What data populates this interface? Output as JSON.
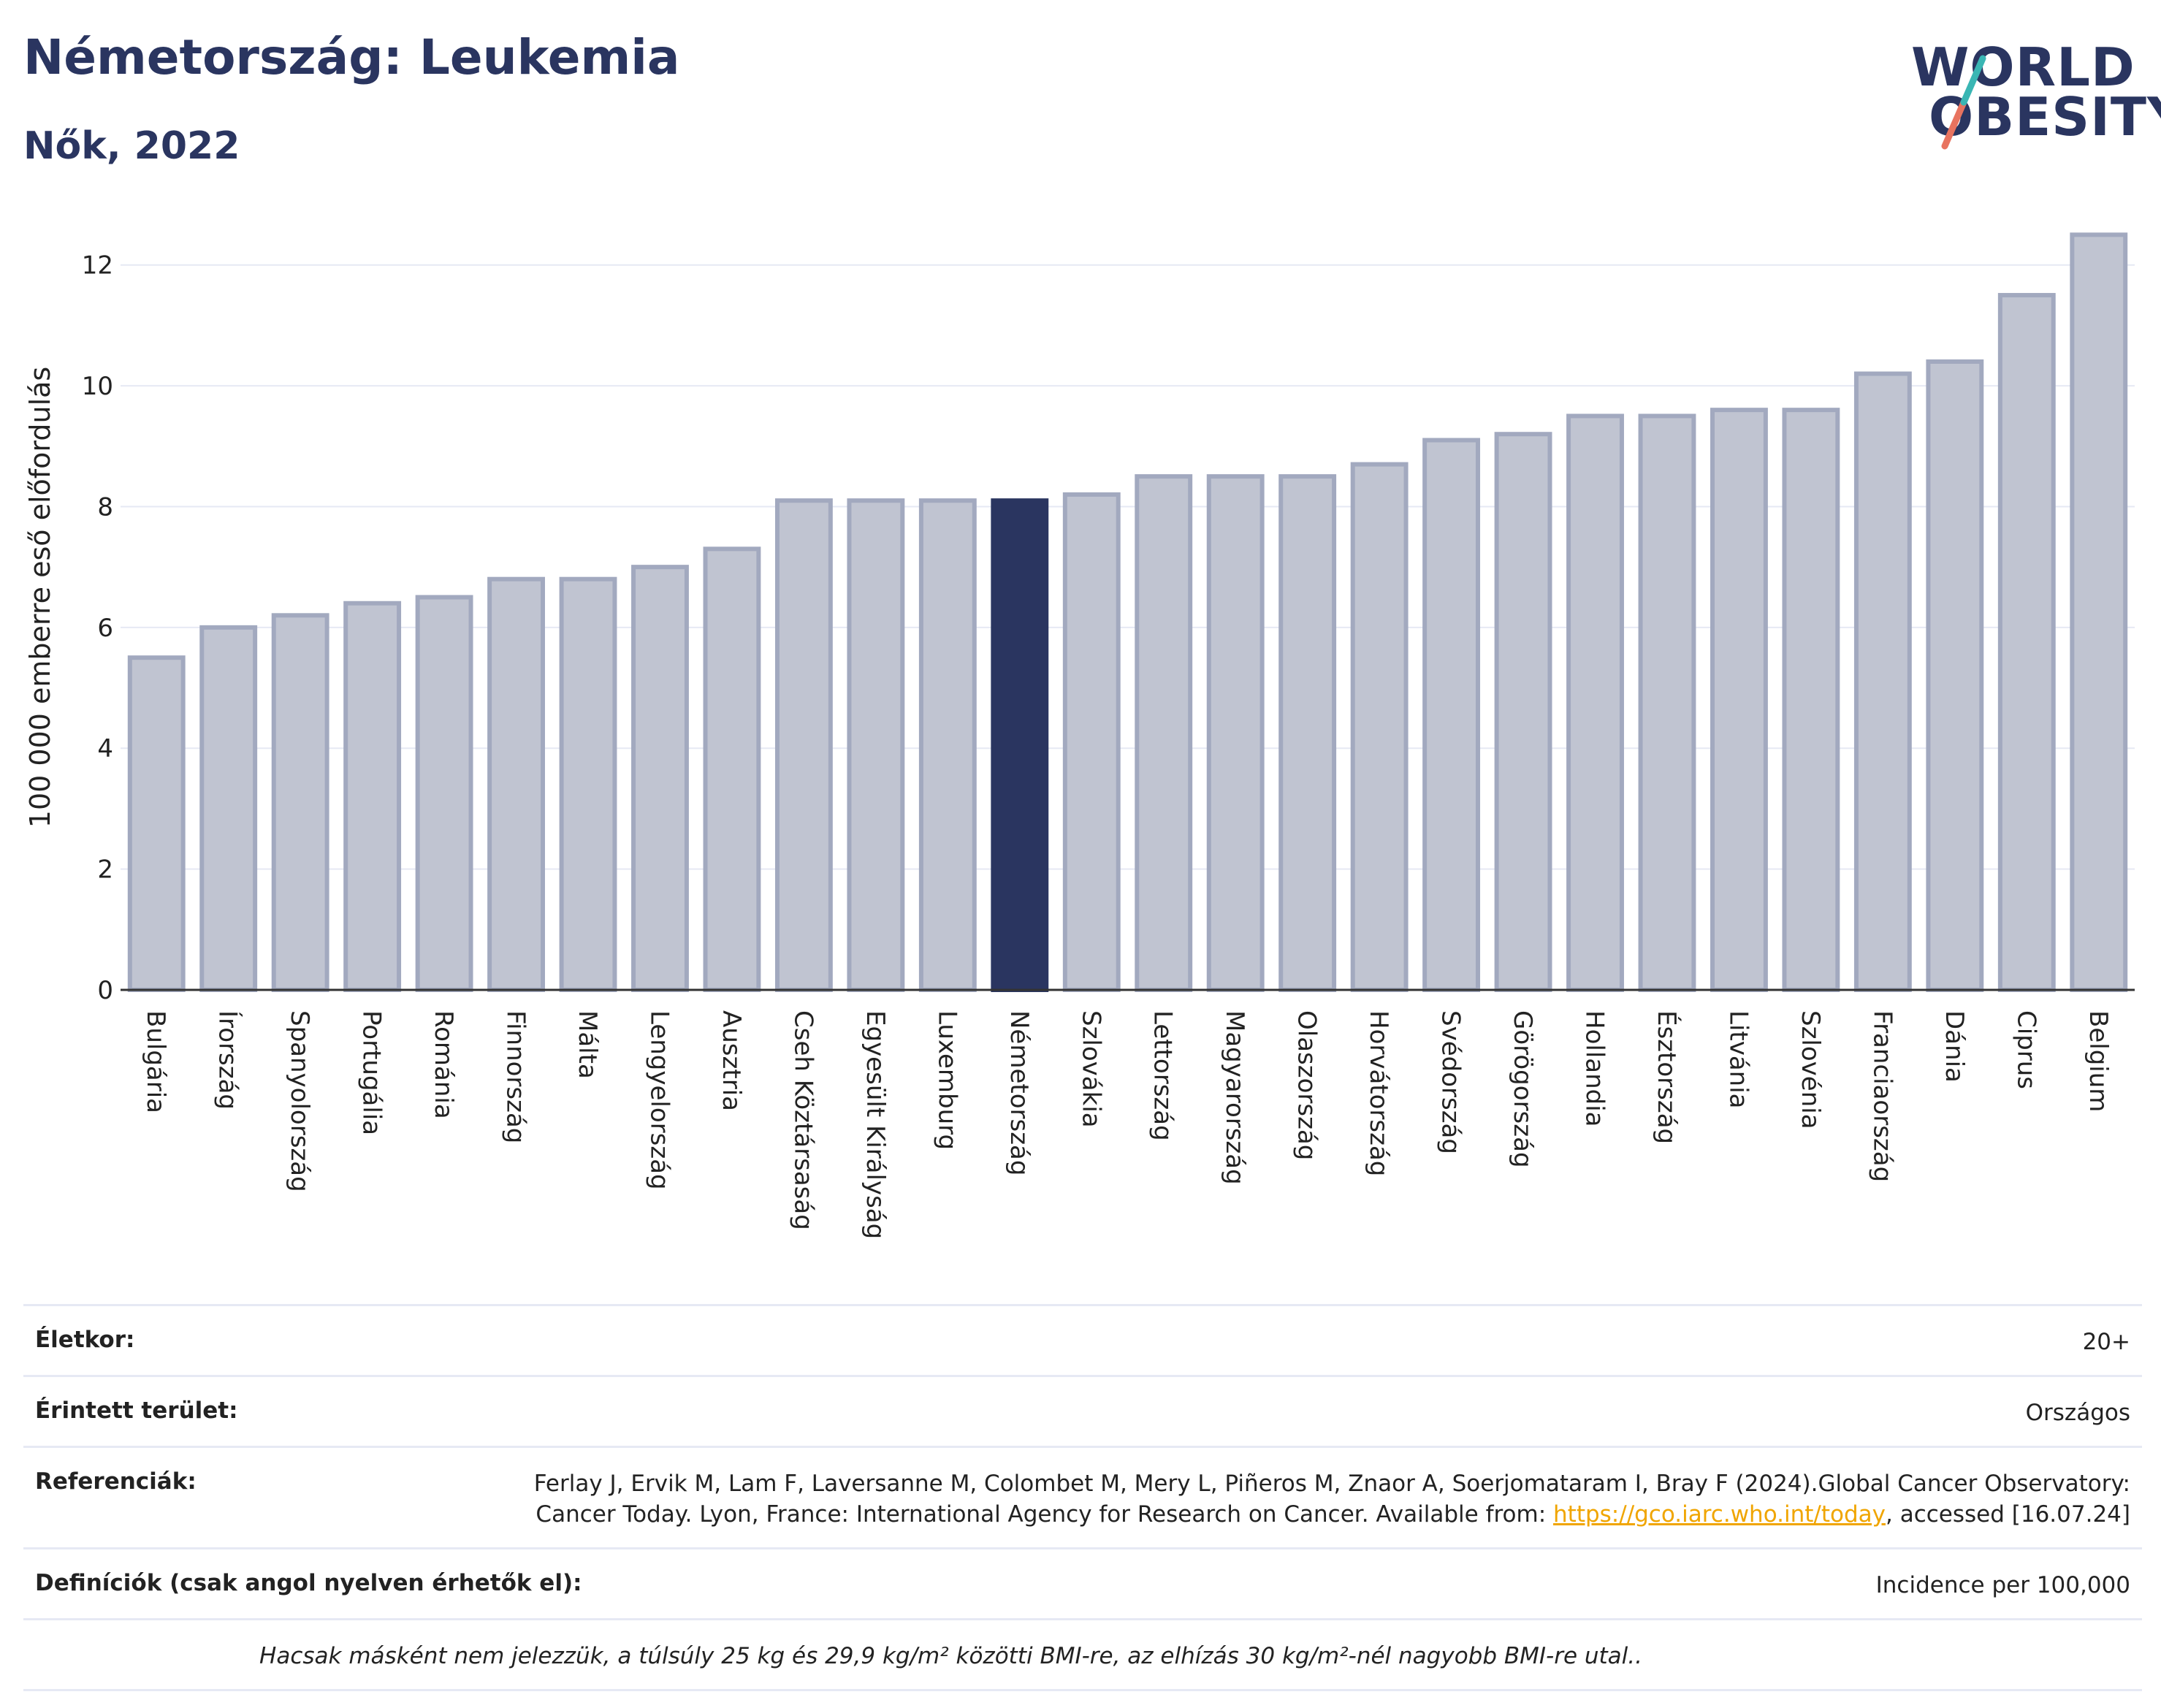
{
  "header": {
    "title": "Németország: Leukemia",
    "subtitle": "Nők, 2022"
  },
  "logo": {
    "line1": "WORLD",
    "line2": "OBESITY"
  },
  "colors": {
    "highlight": "#2a3560",
    "bar_fill": "#c0c4d1",
    "bar_stroke": "#a2a9bf",
    "grid": "#e6e9f4",
    "accent_teal": "#3ab6b4",
    "accent_coral": "#e8735f"
  },
  "chart_data": {
    "type": "bar",
    "ylabel": "100 000 emberre eső előfordulás",
    "ylim": [
      0,
      13
    ],
    "yticks": [
      0,
      2,
      4,
      6,
      8,
      10,
      12
    ],
    "grid": true,
    "highlight_category": "Németország",
    "categories": [
      "Bulgária",
      "Írország",
      "Spanyolország",
      "Portugália",
      "Románia",
      "Finnország",
      "Málta",
      "Lengyelország",
      "Ausztria",
      "Cseh Köztársaság",
      "Egyesült Királyság",
      "Luxemburg",
      "Németország",
      "Szlovákia",
      "Lettország",
      "Magyarország",
      "Olaszország",
      "Horvátország",
      "Svédország",
      "Görögország",
      "Hollandia",
      "Észtország",
      "Litvánia",
      "Szlovénia",
      "Franciaország",
      "Dánia",
      "Ciprus",
      "Belgium"
    ],
    "values": [
      5.5,
      6.0,
      6.2,
      6.4,
      6.5,
      6.8,
      6.8,
      7.0,
      7.3,
      8.1,
      8.1,
      8.1,
      8.1,
      8.2,
      8.5,
      8.5,
      8.5,
      8.7,
      9.1,
      9.2,
      9.5,
      9.5,
      9.6,
      9.6,
      10.2,
      10.4,
      11.5,
      12.5
    ]
  },
  "info": {
    "age_label": "Életkor:",
    "age_value": "20+",
    "area_label": "Érintett terület:",
    "area_value": "Országos",
    "ref_label": "Referenciák:",
    "ref_text": "Ferlay J, Ervik M, Lam F, Laversanne M, Colombet M, Mery L, Piñeros M, Znaor A, Soerjomataram I, Bray F (2024).Global Cancer Observatory: Cancer Today. Lyon, France: International Agency for Research on Cancer. Available from: ",
    "ref_link": "https://gco.iarc.who.int/today",
    "ref_tail": ", accessed [16.07.24]",
    "def_label": "Definíciók (csak angol nyelven érhetők el):",
    "def_value": "Incidence per 100,000",
    "note": "Hacsak másként nem jelezzük, a túlsúly 25 kg és 29,9 kg/m² közötti BMI-re, az elhízás 30 kg/m²-nél nagyobb BMI-re utal.."
  }
}
